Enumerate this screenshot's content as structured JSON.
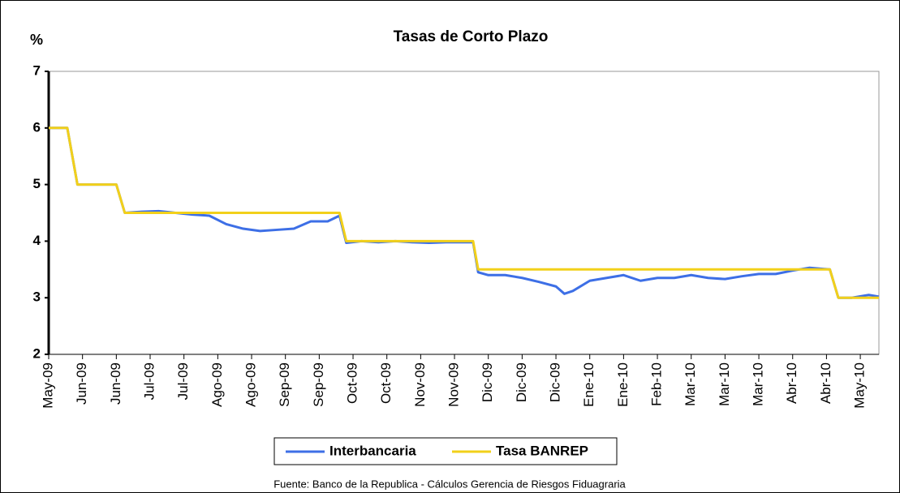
{
  "chart_data": {
    "type": "line",
    "title": "Tasas de Corto Plazo",
    "y_label": "%",
    "source": "Fuente: Banco de la Republica - Cálculos Gerencia de Riesgos Fiduagraria",
    "legend": "bottom",
    "x": [
      0,
      0.55,
      0.85,
      1.5,
      2.0,
      2.25,
      2.75,
      3.25,
      3.75,
      4.25,
      4.75,
      5.25,
      5.75,
      6.25,
      6.75,
      7.25,
      7.75,
      8.25,
      8.6,
      8.8,
      9.25,
      9.75,
      10.25,
      10.75,
      11.25,
      11.75,
      12.25,
      12.55,
      12.7,
      13.0,
      13.5,
      14.0,
      14.5,
      15.0,
      15.25,
      15.5,
      16.0,
      16.5,
      17.0,
      17.5,
      18.0,
      18.5,
      19.0,
      19.5,
      20.0,
      20.5,
      21.0,
      21.5,
      22.0,
      22.5,
      23.1,
      23.35,
      23.75,
      24.25,
      24.55
    ],
    "series": [
      {
        "name": "Interbancaria",
        "color": "#3d6fe6",
        "values": [
          6,
          6,
          5,
          5,
          5,
          4.5,
          4.52,
          4.53,
          4.5,
          4.47,
          4.45,
          4.3,
          4.22,
          4.18,
          4.2,
          4.22,
          4.35,
          4.35,
          4.45,
          3.97,
          4.0,
          3.98,
          4.0,
          3.98,
          3.97,
          3.98,
          3.98,
          3.98,
          3.45,
          3.4,
          3.4,
          3.35,
          3.28,
          3.2,
          3.07,
          3.12,
          3.3,
          3.35,
          3.4,
          3.3,
          3.35,
          3.35,
          3.4,
          3.35,
          3.33,
          3.38,
          3.42,
          3.42,
          3.48,
          3.53,
          3.5,
          3.0,
          3.0,
          3.05,
          3.02
        ]
      },
      {
        "name": "Tasa BANREP",
        "color": "#f2d01a",
        "values": [
          6,
          6,
          5,
          5,
          5,
          4.5,
          4.5,
          4.5,
          4.5,
          4.5,
          4.5,
          4.5,
          4.5,
          4.5,
          4.5,
          4.5,
          4.5,
          4.5,
          4.5,
          4,
          4,
          4,
          4,
          4,
          4,
          4,
          4,
          4,
          3.5,
          3.5,
          3.5,
          3.5,
          3.5,
          3.5,
          3.5,
          3.5,
          3.5,
          3.5,
          3.5,
          3.5,
          3.5,
          3.5,
          3.5,
          3.5,
          3.5,
          3.5,
          3.5,
          3.5,
          3.5,
          3.5,
          3.5,
          3,
          3,
          3,
          3
        ]
      }
    ],
    "xlim": [
      0,
      24.55
    ],
    "xticks": [
      {
        "value": 0,
        "label": "May-09"
      },
      {
        "value": 1,
        "label": "Jun-09"
      },
      {
        "value": 2,
        "label": "Jun-09"
      },
      {
        "value": 3,
        "label": "Jul-09"
      },
      {
        "value": 4,
        "label": "Jul-09"
      },
      {
        "value": 5,
        "label": "Ago-09"
      },
      {
        "value": 6,
        "label": "Ago-09"
      },
      {
        "value": 7,
        "label": "Sep-09"
      },
      {
        "value": 8,
        "label": "Sep-09"
      },
      {
        "value": 9,
        "label": "Oct-09"
      },
      {
        "value": 10,
        "label": "Oct-09"
      },
      {
        "value": 11,
        "label": "Nov-09"
      },
      {
        "value": 12,
        "label": "Nov-09"
      },
      {
        "value": 13,
        "label": "Dic-09"
      },
      {
        "value": 14,
        "label": "Dic-09"
      },
      {
        "value": 15,
        "label": "Dic-09"
      },
      {
        "value": 16,
        "label": "Ene-10"
      },
      {
        "value": 17,
        "label": "Ene-10"
      },
      {
        "value": 18,
        "label": "Feb-10"
      },
      {
        "value": 19,
        "label": "Mar-10"
      },
      {
        "value": 20,
        "label": "Mar-10"
      },
      {
        "value": 21,
        "label": "Mar-10"
      },
      {
        "value": 22,
        "label": "Abr-10"
      },
      {
        "value": 23,
        "label": "Abr-10"
      },
      {
        "value": 24,
        "label": "May-10"
      }
    ],
    "ylim": [
      2,
      7
    ],
    "yticks": [
      2,
      3,
      4,
      5,
      6,
      7
    ],
    "grid": false
  }
}
